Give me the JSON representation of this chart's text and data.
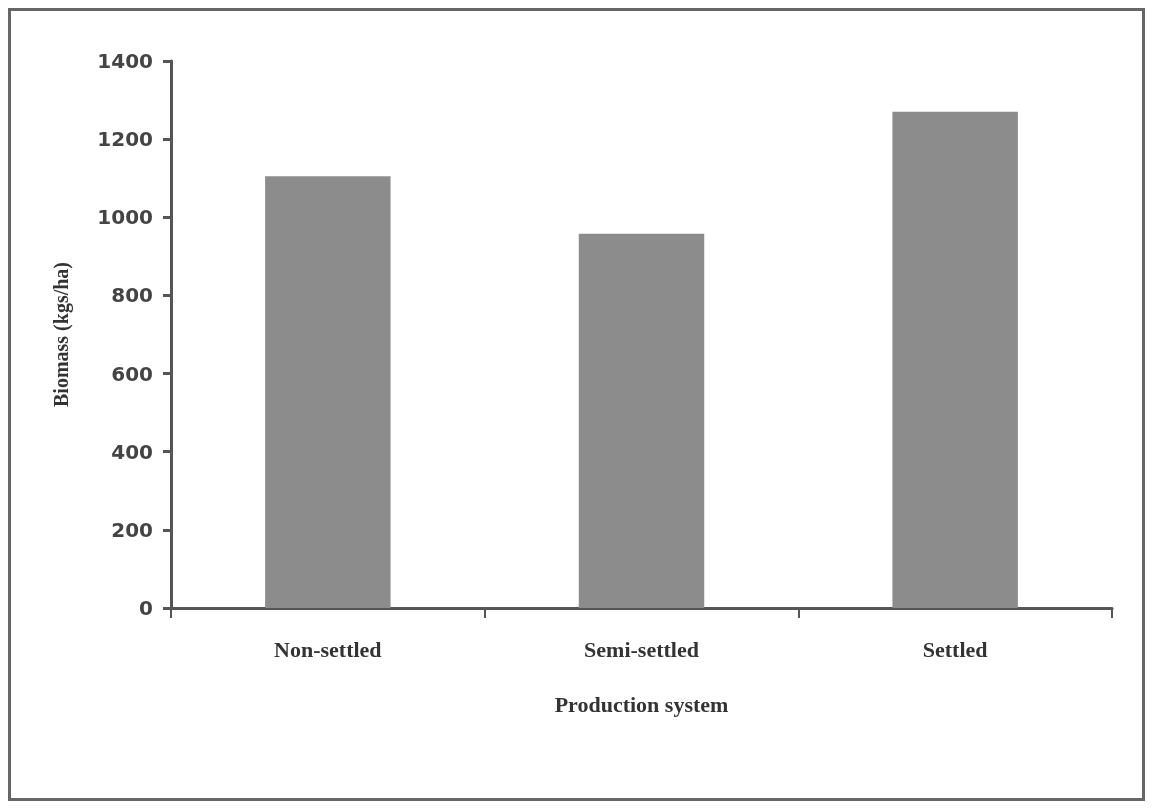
{
  "chart_data": {
    "type": "bar",
    "xlabel": "Production system",
    "ylabel": "Biomass (kgs/ha)",
    "categories": [
      "Non-settled",
      "Semi-settled",
      "Settled"
    ],
    "values": [
      1105,
      958,
      1270
    ],
    "color": "#8c8c8c",
    "ylim": [
      0,
      1400
    ],
    "yticks": [
      0,
      200,
      400,
      600,
      800,
      1000,
      1200,
      1400
    ],
    "grid": false
  }
}
